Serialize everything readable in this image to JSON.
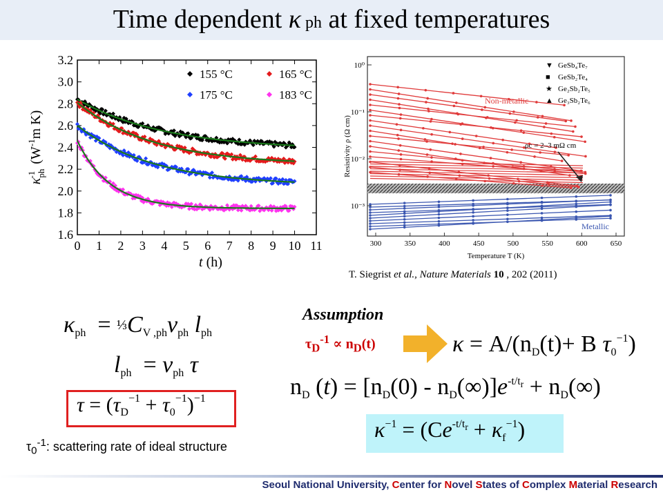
{
  "title": {
    "prefix": "Time dependent ",
    "kappa": "κ",
    "sub": " ph",
    "suffix": " at fixed temperatures"
  },
  "citation": {
    "authors": "T. Siegrist ",
    "etal": "et al.",
    "journal": ", Nature Materials ",
    "volume": "10",
    "rest": " , 202 (2011)"
  },
  "assumption": {
    "label": "Assumption",
    "relation_tau": "τ",
    "relation_sub": "D",
    "relation_sup": "-1",
    "relation_rest": "∝ n",
    "relation_sub2": "D",
    "relation_end": "(t)"
  },
  "scatter_note": {
    "tau": "τ",
    "sub": "0",
    "sup": "-1",
    "text": ": scattering rate of ideal structure"
  },
  "footer": {
    "p1": "Seoul National University, ",
    "c": "C",
    "p2": "enter for ",
    "n": "N",
    "p3": "ovel ",
    "s": "S",
    "p4": "tates of ",
    "cc": "C",
    "p5": "omplex ",
    "m": "M",
    "p6": "aterial ",
    "rr": "R",
    "p7": "esearch"
  },
  "colors": {
    "red": "#e41a1c",
    "black": "#000000",
    "blue": "#1f3fff",
    "magenta": "#ff33ee",
    "fit": "#1a7a1a"
  },
  "chart_data": [
    {
      "type": "scatter",
      "xlabel": "t (h)",
      "ylabel": "κph-1 (W-1m K)",
      "xlim": [
        0,
        11
      ],
      "ylim": [
        1.6,
        3.2
      ],
      "xticks": [
        "0",
        "1",
        "2",
        "3",
        "4",
        "5",
        "6",
        "7",
        "8",
        "9",
        "10",
        "11"
      ],
      "yticks": [
        "1.6",
        "1.8",
        "2.0",
        "2.2",
        "2.4",
        "2.6",
        "2.8",
        "3.0",
        "3.2"
      ],
      "legend_placement": "top-right",
      "series": [
        {
          "name": "155 °C",
          "color": "#000000",
          "y0": 2.84,
          "yinf": 2.38,
          "tau": 4.0,
          "tmax": 10
        },
        {
          "name": "165 °C",
          "color": "#e41a1c",
          "y0": 2.81,
          "yinf": 2.24,
          "tau": 3.5,
          "tmax": 10
        },
        {
          "name": "175 °C",
          "color": "#1f3fff",
          "y0": 2.6,
          "yinf": 2.05,
          "tau": 3.5,
          "tmax": 10
        },
        {
          "name": "183 °C",
          "color": "#ff33ee",
          "y0": 2.46,
          "yinf": 1.84,
          "tau": 1.5,
          "tmax": 10
        }
      ]
    },
    {
      "type": "line",
      "xlabel": "Temperature T (K)",
      "ylabel": "Resistivity ρ (Ω cm)",
      "xticks": [
        "300",
        "350",
        "400",
        "450",
        "500",
        "550",
        "600",
        "650"
      ],
      "yticks": [
        "10⁰",
        "10⁻¹",
        "10⁻²",
        "10⁻³"
      ],
      "log_y": true,
      "legend": [
        "GeSb₄Te₇",
        "GeSb₂Te₄",
        "Ge₂Sb₂Te₅",
        "Ge₃Sb₂Te₆"
      ],
      "annotations": [
        "Non-metallic",
        "Metallic",
        "ρc = 2–3 mΩ cm"
      ],
      "metallic_color": "#3a56b0",
      "nonmetallic_color": "#e03a3a"
    }
  ]
}
